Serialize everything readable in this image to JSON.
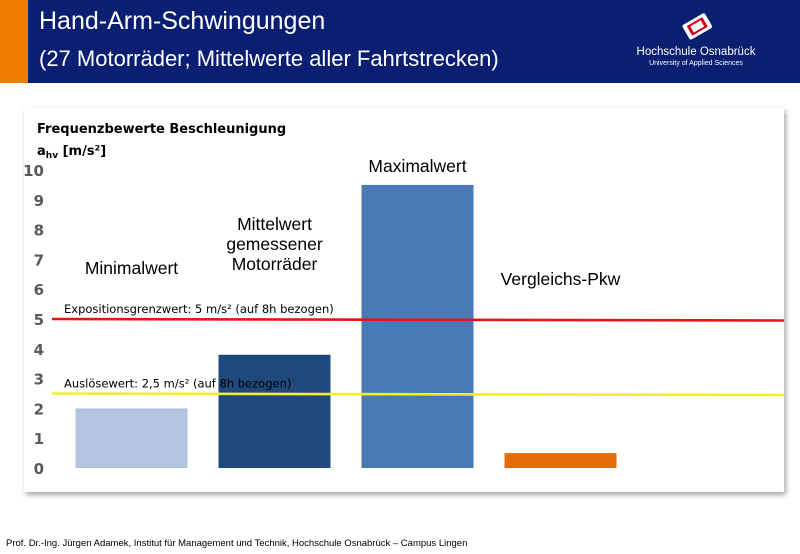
{
  "header": {
    "title": "Hand-Arm-Schwingungen",
    "subtitle": "(27 Motorräder; Mittelwerte aller Fahrtstrecken)",
    "logo_name": "Hochschule Osnabrück",
    "logo_sub": "University of Applied Sciences"
  },
  "colors": {
    "header_bg": "#0a1f72",
    "accent": "#ef7d00",
    "limit_line": "#e8141c",
    "action_line": "#f2ef2b"
  },
  "chart_data": {
    "type": "bar",
    "ylabel_line1": "Frequenzbewerte Beschleunigung",
    "ylabel_line2_main": "a",
    "ylabel_line2_sub": "hv",
    "ylabel_line2_unit": " [m/s²]",
    "ylim": [
      0,
      10
    ],
    "yticks": [
      0,
      1,
      2,
      3,
      4,
      5,
      6,
      7,
      8,
      9,
      10
    ],
    "grid": false,
    "categories": [
      [
        "Minimalwert"
      ],
      [
        "Mittelwert",
        "gemessener",
        "Motorräder"
      ],
      [
        "Maximalwert"
      ],
      [
        "Vergleichs-Pkw"
      ]
    ],
    "values": [
      2.0,
      3.8,
      9.5,
      0.5
    ],
    "bar_colors": [
      "#b4c3df",
      "#1f497d",
      "#4a7ab5",
      "#e36c0a"
    ],
    "reference_lines": [
      {
        "label": "Expositionsgrenzwert: 5 m/s² (auf 8h bezogen)",
        "value": 5.0,
        "color": "#e8141c"
      },
      {
        "label": "Auslösewert: 2,5 m/s² (auf 8h bezogen)",
        "value": 2.5,
        "color": "#f2ef2b"
      }
    ]
  },
  "footer": {
    "text": "Prof. Dr.-Ing. Jürgen Adamek,  Institut für Management und Technik, Hochschule Osnabrück – Campus Lingen"
  }
}
